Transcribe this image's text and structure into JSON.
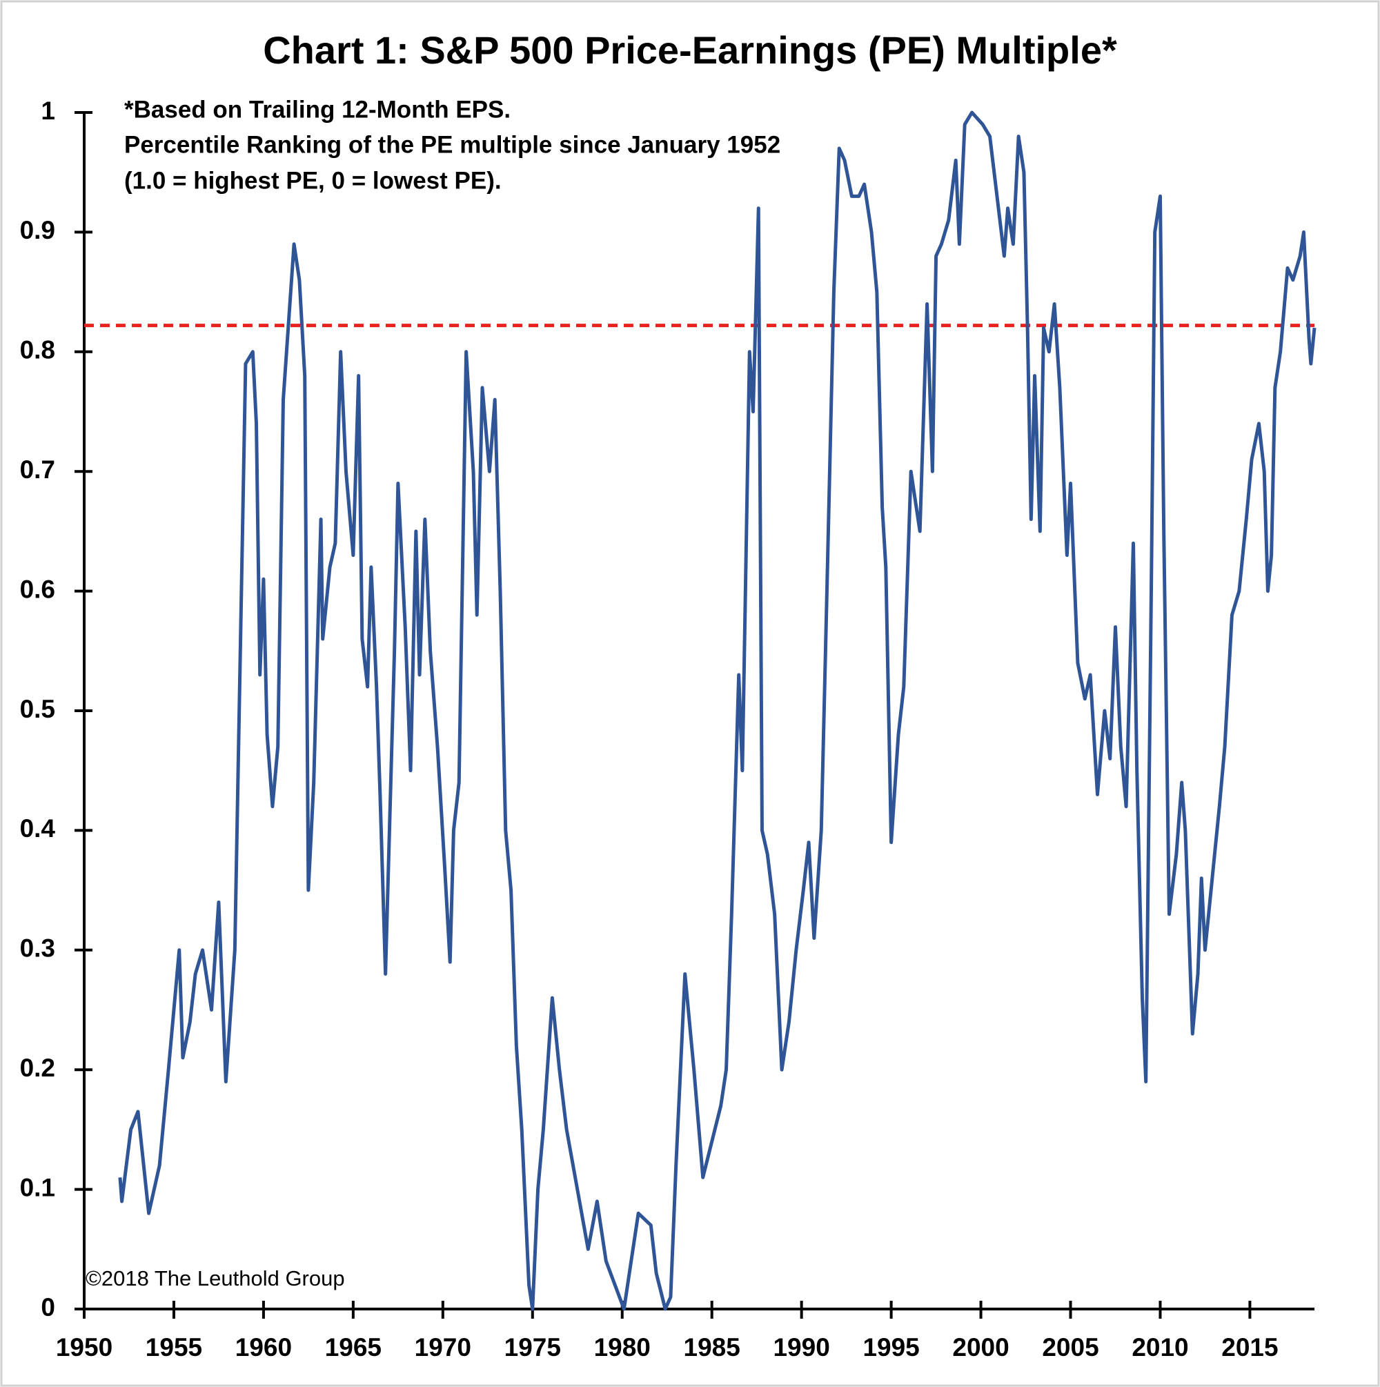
{
  "chart_data": {
    "type": "line",
    "title": "Chart 1: S&P 500 Price-Earnings (PE) Multiple*",
    "annotations": [
      "*Based on Trailing 12-Month EPS.",
      "Percentile Ranking of the PE multiple since January 1952",
      "(1.0 = highest PE, 0 = lowest PE)."
    ],
    "source": "©2018 The Leuthold Group",
    "xlim": [
      1950,
      2018.6
    ],
    "xticks": [
      1950,
      1955,
      1960,
      1965,
      1970,
      1975,
      1980,
      1985,
      1990,
      1995,
      2000,
      2005,
      2010,
      2015
    ],
    "ylim": [
      0,
      1
    ],
    "yticks": [
      0,
      0.1,
      0.2,
      0.3,
      0.4,
      0.5,
      0.6,
      0.7,
      0.8,
      0.9,
      1
    ],
    "reference_line": {
      "value": 0.822,
      "color": "#e8231f",
      "style": "dashed"
    },
    "x": [
      1952.0,
      1952.1,
      1952.6,
      1953.0,
      1953.6,
      1954.2,
      1954.7,
      1955.3,
      1955.5,
      1955.9,
      1956.2,
      1956.6,
      1957.1,
      1957.5,
      1957.9,
      1958.4,
      1959.0,
      1959.4,
      1959.6,
      1959.8,
      1960.0,
      1960.2,
      1960.5,
      1960.8,
      1961.1,
      1961.7,
      1962.0,
      1962.3,
      1962.5,
      1962.8,
      1963.2,
      1963.3,
      1963.7,
      1964.0,
      1964.3,
      1964.6,
      1965.0,
      1965.3,
      1965.5,
      1965.8,
      1966.0,
      1966.3,
      1966.5,
      1966.8,
      1967.3,
      1967.5,
      1967.9,
      1968.2,
      1968.5,
      1968.7,
      1969.0,
      1969.3,
      1969.7,
      1970.1,
      1970.4,
      1970.6,
      1970.9,
      1971.3,
      1971.7,
      1971.9,
      1972.2,
      1972.6,
      1972.9,
      1973.2,
      1973.5,
      1973.8,
      1974.1,
      1974.4,
      1974.8,
      1975.0,
      1975.3,
      1975.6,
      1976.1,
      1976.5,
      1976.9,
      1977.5,
      1978.1,
      1978.6,
      1979.1,
      1979.6,
      1980.1,
      1980.5,
      1980.9,
      1981.6,
      1981.9,
      1982.4,
      1982.7,
      1983.0,
      1983.5,
      1984.0,
      1984.5,
      1985.0,
      1985.5,
      1985.8,
      1986.1,
      1986.5,
      1986.7,
      1987.1,
      1987.3,
      1987.6,
      1987.8,
      1988.1,
      1988.5,
      1988.9,
      1989.3,
      1989.7,
      1990.1,
      1990.4,
      1990.7,
      1991.1,
      1991.4,
      1991.8,
      1992.1,
      1992.4,
      1992.8,
      1993.2,
      1993.5,
      1993.9,
      1994.2,
      1994.5,
      1994.7,
      1995.0,
      1995.4,
      1995.7,
      1996.1,
      1996.6,
      1997.0,
      1997.3,
      1997.5,
      1997.8,
      1998.2,
      1998.6,
      1998.8,
      1999.1,
      1999.5,
      2000.1,
      2000.5,
      2000.9,
      2001.3,
      2001.5,
      2001.8,
      2002.1,
      2002.4,
      2002.6,
      2002.8,
      2003.0,
      2003.3,
      2003.5,
      2003.8,
      2004.1,
      2004.4,
      2004.8,
      2005.0,
      2005.4,
      2005.8,
      2006.1,
      2006.5,
      2006.9,
      2007.2,
      2007.5,
      2007.8,
      2008.1,
      2008.5,
      2008.7,
      2009.0,
      2009.2,
      2009.5,
      2009.7,
      2010.0,
      2010.2,
      2010.5,
      2010.9,
      2011.2,
      2011.4,
      2011.8,
      2012.1,
      2012.3,
      2012.5,
      2012.9,
      2013.3,
      2013.6,
      2014.0,
      2014.4,
      2014.8,
      2015.1,
      2015.5,
      2015.8,
      2016.0,
      2016.2,
      2016.4,
      2016.7,
      2017.1,
      2017.4,
      2017.8,
      2018.0,
      2018.3,
      2018.4,
      2018.6
    ],
    "series": [
      {
        "name": "PE percentile",
        "color": "#2f5597",
        "values": [
          0.11,
          0.09,
          0.15,
          0.165,
          0.08,
          0.12,
          0.2,
          0.3,
          0.21,
          0.24,
          0.28,
          0.3,
          0.25,
          0.34,
          0.19,
          0.3,
          0.79,
          0.8,
          0.74,
          0.53,
          0.61,
          0.48,
          0.42,
          0.47,
          0.76,
          0.89,
          0.86,
          0.78,
          0.35,
          0.44,
          0.66,
          0.56,
          0.62,
          0.64,
          0.8,
          0.7,
          0.63,
          0.78,
          0.56,
          0.52,
          0.62,
          0.52,
          0.43,
          0.28,
          0.55,
          0.69,
          0.57,
          0.45,
          0.65,
          0.53,
          0.66,
          0.55,
          0.47,
          0.37,
          0.29,
          0.4,
          0.44,
          0.8,
          0.7,
          0.58,
          0.77,
          0.7,
          0.76,
          0.6,
          0.4,
          0.35,
          0.22,
          0.15,
          0.02,
          0.0,
          0.1,
          0.15,
          0.26,
          0.2,
          0.15,
          0.1,
          0.05,
          0.09,
          0.04,
          0.02,
          0.0,
          0.04,
          0.08,
          0.07,
          0.03,
          0.0,
          0.01,
          0.12,
          0.28,
          0.2,
          0.11,
          0.14,
          0.17,
          0.2,
          0.33,
          0.53,
          0.45,
          0.8,
          0.75,
          0.92,
          0.4,
          0.38,
          0.33,
          0.2,
          0.24,
          0.3,
          0.35,
          0.39,
          0.31,
          0.4,
          0.59,
          0.85,
          0.97,
          0.96,
          0.93,
          0.93,
          0.94,
          0.9,
          0.85,
          0.67,
          0.62,
          0.39,
          0.48,
          0.52,
          0.7,
          0.65,
          0.84,
          0.7,
          0.88,
          0.89,
          0.91,
          0.96,
          0.89,
          0.99,
          1.0,
          0.99,
          0.98,
          0.93,
          0.88,
          0.92,
          0.89,
          0.98,
          0.95,
          0.82,
          0.66,
          0.78,
          0.65,
          0.82,
          0.8,
          0.84,
          0.77,
          0.63,
          0.69,
          0.54,
          0.51,
          0.53,
          0.43,
          0.5,
          0.46,
          0.57,
          0.47,
          0.42,
          0.64,
          0.45,
          0.26,
          0.19,
          0.6,
          0.9,
          0.93,
          0.65,
          0.33,
          0.38,
          0.44,
          0.4,
          0.23,
          0.28,
          0.36,
          0.3,
          0.36,
          0.42,
          0.47,
          0.58,
          0.6,
          0.66,
          0.71,
          0.74,
          0.7,
          0.6,
          0.63,
          0.77,
          0.8,
          0.87,
          0.86,
          0.88,
          0.9,
          0.81,
          0.79,
          0.82
        ]
      }
    ]
  }
}
